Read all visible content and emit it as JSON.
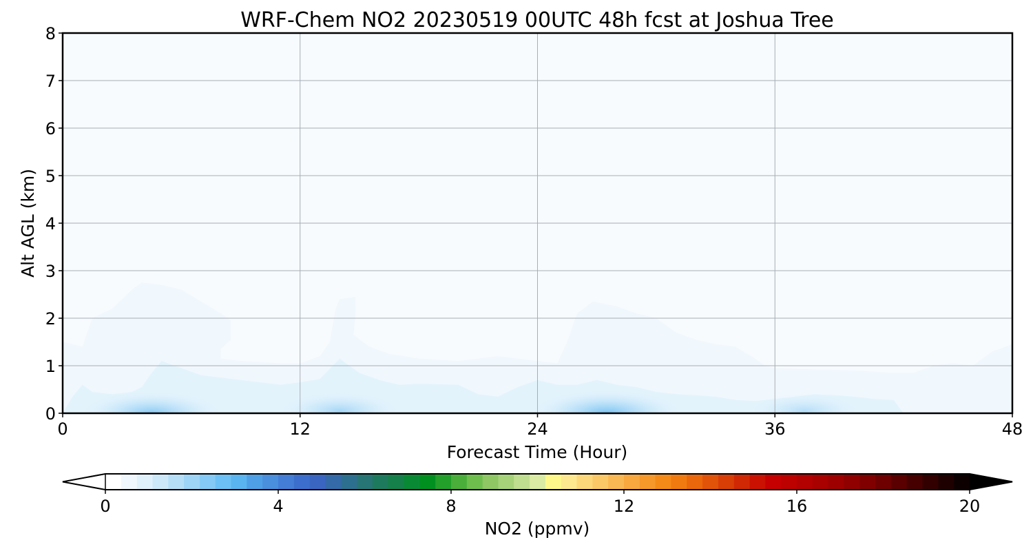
{
  "chart_data": {
    "type": "area",
    "title": "WRF-Chem NO2  20230519 00UTC 48h fcst at Joshua Tree",
    "xlabel": "Forecast Time (Hour)",
    "ylabel": "Alt AGL (km)",
    "xlim": [
      0,
      48
    ],
    "ylim": [
      0,
      8
    ],
    "xticks": [
      0,
      12,
      24,
      36,
      48
    ],
    "yticks": [
      0,
      1,
      2,
      3,
      4,
      5,
      6,
      7,
      8
    ],
    "grid": true,
    "contour_levels": [
      {
        "value": 0.25,
        "color": "#f0f7fd",
        "boundary": [
          [
            0,
            1.5
          ],
          [
            0.5,
            1.45
          ],
          [
            1,
            1.4
          ],
          [
            1.5,
            2.0
          ],
          [
            2.5,
            2.2
          ],
          [
            3.5,
            2.6
          ],
          [
            4,
            2.75
          ],
          [
            5,
            2.7
          ],
          [
            6,
            2.6
          ],
          [
            7,
            2.35
          ],
          [
            8,
            2.1
          ],
          [
            8.5,
            1.95
          ],
          [
            8.5,
            1.55
          ],
          [
            8,
            1.35
          ],
          [
            8,
            1.15
          ],
          [
            9,
            1.1
          ],
          [
            11,
            1.05
          ],
          [
            12,
            1.05
          ],
          [
            13,
            1.2
          ],
          [
            13.5,
            1.5
          ],
          [
            13.8,
            2.2
          ],
          [
            14,
            2.4
          ],
          [
            14.8,
            2.45
          ],
          [
            14.8,
            2.05
          ],
          [
            14.7,
            1.65
          ],
          [
            15.5,
            1.4
          ],
          [
            16.5,
            1.25
          ],
          [
            18,
            1.15
          ],
          [
            20,
            1.1
          ],
          [
            22,
            1.2
          ],
          [
            23,
            1.15
          ],
          [
            24,
            1.1
          ],
          [
            25,
            1.05
          ],
          [
            25.5,
            1.5
          ],
          [
            26,
            2.1
          ],
          [
            26.8,
            2.35
          ],
          [
            28,
            2.25
          ],
          [
            29,
            2.1
          ],
          [
            30,
            2.0
          ],
          [
            31,
            1.7
          ],
          [
            32,
            1.55
          ],
          [
            33,
            1.45
          ],
          [
            34,
            1.4
          ],
          [
            35,
            1.15
          ],
          [
            35.5,
            1.0
          ],
          [
            36,
            0.95
          ],
          [
            38,
            0.92
          ],
          [
            40,
            0.9
          ],
          [
            42,
            0.85
          ],
          [
            43,
            0.85
          ],
          [
            44,
            1.0
          ],
          [
            45,
            1.05
          ],
          [
            46,
            1.0
          ],
          [
            47,
            1.3
          ],
          [
            48,
            1.45
          ]
        ]
      },
      {
        "value": 0.5,
        "color": "#e3f3fc",
        "boundary": [
          [
            0,
            0.0
          ],
          [
            0.5,
            0.35
          ],
          [
            1,
            0.6
          ],
          [
            1.5,
            0.45
          ],
          [
            2.5,
            0.4
          ],
          [
            3.5,
            0.45
          ],
          [
            4,
            0.55
          ],
          [
            4.5,
            0.85
          ],
          [
            5,
            1.1
          ],
          [
            6,
            0.95
          ],
          [
            7,
            0.8
          ],
          [
            8,
            0.75
          ],
          [
            9,
            0.7
          ],
          [
            10,
            0.65
          ],
          [
            11,
            0.6
          ],
          [
            12,
            0.65
          ],
          [
            13,
            0.72
          ],
          [
            14,
            1.15
          ],
          [
            15,
            0.85
          ],
          [
            16,
            0.7
          ],
          [
            17,
            0.6
          ],
          [
            18,
            0.62
          ],
          [
            20,
            0.6
          ],
          [
            21,
            0.4
          ],
          [
            22,
            0.35
          ],
          [
            23,
            0.55
          ],
          [
            24,
            0.7
          ],
          [
            25,
            0.6
          ],
          [
            26,
            0.6
          ],
          [
            27,
            0.7
          ],
          [
            28,
            0.6
          ],
          [
            29,
            0.55
          ],
          [
            30,
            0.45
          ],
          [
            31,
            0.4
          ],
          [
            32,
            0.38
          ],
          [
            33,
            0.35
          ],
          [
            34,
            0.28
          ],
          [
            35,
            0.26
          ],
          [
            36,
            0.3
          ],
          [
            37,
            0.35
          ],
          [
            38,
            0.4
          ],
          [
            39,
            0.38
          ],
          [
            40,
            0.35
          ],
          [
            41,
            0.3
          ],
          [
            42,
            0.28
          ],
          [
            42.5,
            0.0
          ]
        ]
      }
    ],
    "hotspots": [
      {
        "x": 4.5,
        "y": 0.0,
        "value": 3.0
      },
      {
        "x": 14.0,
        "y": 0.05,
        "value": 2.0
      },
      {
        "x": 27.5,
        "y": 0.0,
        "value": 3.5
      },
      {
        "x": 37.5,
        "y": 0.05,
        "value": 1.5
      }
    ],
    "colorbar": {
      "label": "NO2  (ppmv)",
      "range": [
        0,
        20
      ],
      "ticks": [
        0,
        4,
        8,
        12,
        16,
        20
      ],
      "extend": "both",
      "extend_min_color": "#ffffff",
      "extend_max_color": "#000000",
      "colors": [
        "#ffffff",
        "#f1f8fd",
        "#e1f1fb",
        "#cde9f9",
        "#b6dff7",
        "#9ed4f6",
        "#85caf6",
        "#6cc0f6",
        "#5ab4f0",
        "#4f9fe6",
        "#4a8ede",
        "#447dd6",
        "#3c6fcd",
        "#3a66c2",
        "#346aa8",
        "#2d6f8f",
        "#277575",
        "#1e7a5c",
        "#158049",
        "#0a8935",
        "#009020",
        "#23a02a",
        "#4aae3a",
        "#6ebe4e",
        "#8ec764",
        "#a6d27a",
        "#c0de8f",
        "#daeba3",
        "#fef88a",
        "#fde890",
        "#fcd87a",
        "#fbc867",
        "#f9b853",
        "#f8a83f",
        "#f7982a",
        "#f58a18",
        "#f17a10",
        "#ea670c",
        "#e2530a",
        "#d93e07",
        "#d02804",
        "#cb1202",
        "#c60000",
        "#bd0000",
        "#b30000",
        "#a90000",
        "#9e0000",
        "#900000",
        "#800000",
        "#6e0000",
        "#5a0000",
        "#470000",
        "#330000",
        "#1f0000",
        "#0d0000"
      ]
    }
  }
}
